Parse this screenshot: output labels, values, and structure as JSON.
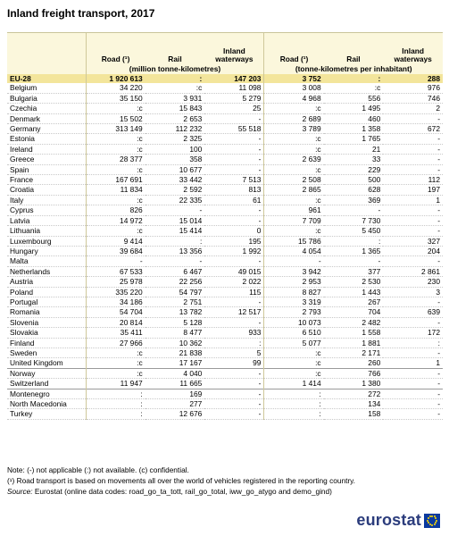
{
  "title": "Inland freight transport, 2017",
  "headers": [
    "Road (¹)",
    "Rail",
    "Inland waterways",
    "Road (¹)",
    "Rail",
    "Inland waterways"
  ],
  "units": [
    "(million tonne-kilometres)",
    "(tonne-kilometres per inhabitant)"
  ],
  "eu": {
    "name": "EU-28",
    "values": [
      "1 920 613",
      ":",
      "147 203",
      "3 752",
      ":",
      "288"
    ]
  },
  "groups": [
    [
      {
        "name": "Belgium",
        "values": [
          "34 220",
          ":c",
          "11 098",
          "3 008",
          ":c",
          "976"
        ]
      },
      {
        "name": "Bulgaria",
        "values": [
          "35 150",
          "3 931",
          "5 279",
          "4 968",
          "556",
          "746"
        ]
      },
      {
        "name": "Czechia",
        "values": [
          ":c",
          "15 843",
          "25",
          ":c",
          "1 495",
          "2"
        ]
      },
      {
        "name": "Denmark",
        "values": [
          "15 502",
          "2 653",
          "-",
          "2 689",
          "460",
          "-"
        ]
      },
      {
        "name": "Germany",
        "values": [
          "313 149",
          "112 232",
          "55 518",
          "3 789",
          "1 358",
          "672"
        ]
      },
      {
        "name": "Estonia",
        "values": [
          ":c",
          "2 325",
          "-",
          ":c",
          "1 765",
          "-"
        ]
      },
      {
        "name": "Ireland",
        "values": [
          ":c",
          "100",
          "-",
          ":c",
          "21",
          "-"
        ]
      },
      {
        "name": "Greece",
        "values": [
          "28 377",
          "358",
          "-",
          "2 639",
          "33",
          "-"
        ]
      },
      {
        "name": "Spain",
        "values": [
          ":c",
          "10 677",
          "-",
          ":c",
          "229",
          "-"
        ]
      },
      {
        "name": "France",
        "values": [
          "167 691",
          "33 442",
          "7 513",
          "2 508",
          "500",
          "112"
        ]
      },
      {
        "name": "Croatia",
        "values": [
          "11 834",
          "2 592",
          "813",
          "2 865",
          "628",
          "197"
        ]
      },
      {
        "name": "Italy",
        "values": [
          ":c",
          "22 335",
          "61",
          ":c",
          "369",
          "1"
        ]
      },
      {
        "name": "Cyprus",
        "values": [
          "826",
          "-",
          "-",
          "961",
          "-",
          "-"
        ]
      },
      {
        "name": "Latvia",
        "values": [
          "14 972",
          "15 014",
          "-",
          "7 709",
          "7 730",
          "-"
        ]
      },
      {
        "name": "Lithuania",
        "values": [
          ":c",
          "15 414",
          "0",
          ":c",
          "5 450",
          "-"
        ]
      },
      {
        "name": "Luxembourg",
        "values": [
          "9 414",
          ":",
          "195",
          "15 786",
          ":",
          "327"
        ]
      },
      {
        "name": "Hungary",
        "values": [
          "39 684",
          "13 356",
          "1 992",
          "4 054",
          "1 365",
          "204"
        ]
      },
      {
        "name": "Malta",
        "values": [
          "-",
          "-",
          "-",
          "-",
          "-",
          "-"
        ]
      },
      {
        "name": "Netherlands",
        "values": [
          "67 533",
          "6 467",
          "49 015",
          "3 942",
          "377",
          "2 861"
        ]
      },
      {
        "name": "Austria",
        "values": [
          "25 978",
          "22 256",
          "2 022",
          "2 953",
          "2 530",
          "230"
        ]
      },
      {
        "name": "Poland",
        "values": [
          "335 220",
          "54 797",
          "115",
          "8 827",
          "1 443",
          "3"
        ]
      },
      {
        "name": "Portugal",
        "values": [
          "34 186",
          "2 751",
          "-",
          "3 319",
          "267",
          "-"
        ]
      },
      {
        "name": "Romania",
        "values": [
          "54 704",
          "13 782",
          "12 517",
          "2 793",
          "704",
          "639"
        ]
      },
      {
        "name": "Slovenia",
        "values": [
          "20 814",
          "5 128",
          "-",
          "10 073",
          "2 482",
          "-"
        ]
      },
      {
        "name": "Slovakia",
        "values": [
          "35 411",
          "8 477",
          "933",
          "6 510",
          "1 558",
          "172"
        ]
      },
      {
        "name": "Finland",
        "values": [
          "27 966",
          "10 362",
          ":",
          "5 077",
          "1 881",
          ":"
        ]
      },
      {
        "name": "Sweden",
        "values": [
          ":c",
          "21 838",
          "5",
          ":c",
          "2 171",
          "-"
        ]
      },
      {
        "name": "United Kingdom",
        "values": [
          ":c",
          "17 167",
          "99",
          ":c",
          "260",
          "1"
        ]
      }
    ],
    [
      {
        "name": "Norway",
        "values": [
          ":c",
          "4 040",
          "-",
          ":c",
          "766",
          "-"
        ]
      },
      {
        "name": "Switzerland",
        "values": [
          "11 947",
          "11 665",
          "-",
          "1 414",
          "1 380",
          "-"
        ]
      }
    ],
    [
      {
        "name": "Montenegro",
        "values": [
          ":",
          "169",
          "-",
          ":",
          "272",
          "-"
        ]
      },
      {
        "name": "North Macedonia",
        "values": [
          ":",
          "277",
          "-",
          ":",
          "134",
          "-"
        ]
      },
      {
        "name": "Turkey",
        "values": [
          ":",
          "12 676",
          "-",
          ":",
          "158",
          "-"
        ]
      }
    ]
  ],
  "notes": {
    "line1": "Note: (-) not applicable (:) not available. (c) confidential.",
    "line2": "(¹) Road transport is based on movements all over the world of vehicles registered in the reporting country.",
    "line3_label": "Source:",
    "line3_text": " Eurostat (online data codes: road_go_ta_tott, rail_go_total, iww_go_atygo and demo_gind)"
  },
  "logo": "eurostat",
  "colors": {
    "header_bg": "#fbf7dc",
    "eu_row_bg": "#f3e59b",
    "logo_blue": "#2b3c7c",
    "flag_blue": "#0b3a9e",
    "flag_star": "#ffdd00"
  }
}
